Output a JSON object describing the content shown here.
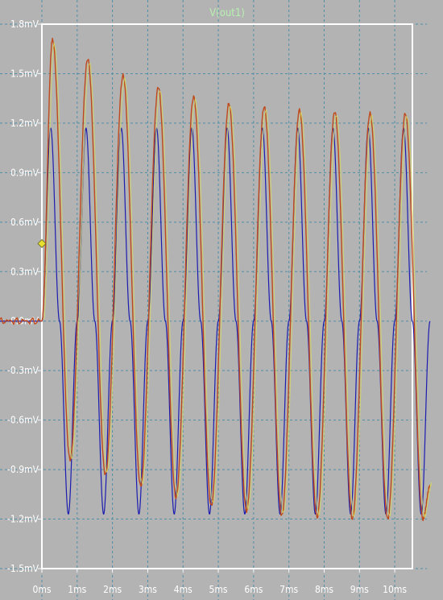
{
  "chart_data": {
    "type": "line",
    "title": "V(out1)",
    "xlabel": "",
    "ylabel": "",
    "x_unit": "ms",
    "y_unit": "mV",
    "xlim": [
      0,
      10.5
    ],
    "ylim": [
      -1.5,
      1.8
    ],
    "x_ticks": [
      "0ms",
      "1ms",
      "2ms",
      "3ms",
      "4ms",
      "5ms",
      "6ms",
      "7ms",
      "8ms",
      "9ms",
      "10ms"
    ],
    "x_tick_values": [
      0,
      1,
      2,
      3,
      4,
      5,
      6,
      7,
      8,
      9,
      10
    ],
    "y_ticks": [
      "1.8mV",
      "1.5mV",
      "1.2mV",
      "0.9mV",
      "0.6mV",
      "0.3mV",
      "0.0mV",
      "-0.3mV",
      "-0.6mV",
      "-0.9mV",
      "-1.2mV",
      "-1.5mV"
    ],
    "y_tick_values": [
      1.8,
      1.5,
      1.2,
      0.9,
      0.6,
      0.3,
      0.0,
      -0.3,
      -0.6,
      -0.9,
      -1.2,
      -1.5
    ],
    "grid": true,
    "cursor_marker": {
      "x": 0.0,
      "y": 0.47,
      "color": "#e8e030"
    },
    "series": [
      {
        "color": "#1c1cb0",
        "x": [
          -1.1,
          0.0,
          0.25,
          0.5,
          0.75,
          1.0,
          1.25,
          1.5,
          1.75,
          2.0,
          2.25,
          2.5,
          2.75,
          3.0,
          3.25,
          3.5,
          3.75,
          4.0,
          4.25,
          4.5,
          4.75,
          5.0,
          5.25,
          5.5,
          5.75,
          6.0,
          6.25,
          6.5,
          6.75,
          7.0,
          7.25,
          7.5,
          7.75,
          8.0,
          8.25,
          8.5,
          8.75,
          9.0,
          9.25,
          9.5,
          9.75,
          10.0,
          10.25,
          10.5,
          10.75,
          11.0
        ],
        "y": [
          0.0,
          0.0,
          1.17,
          0.0,
          -1.17,
          0.0,
          1.17,
          0.0,
          -1.17,
          0.0,
          1.17,
          0.0,
          -1.17,
          0.0,
          1.17,
          0.0,
          -1.17,
          0.0,
          1.17,
          0.0,
          -1.17,
          0.0,
          1.17,
          0.0,
          -1.17,
          0.0,
          1.17,
          0.0,
          -1.17,
          0.0,
          1.17,
          0.0,
          -1.17,
          0.0,
          1.17,
          0.0,
          -1.17,
          0.0,
          1.17,
          0.0,
          -1.17,
          0.0,
          1.17,
          0.0,
          -1.17,
          0.0
        ]
      },
      {
        "color": "#c04a1c",
        "x": [
          -1.1,
          0.0,
          0.3,
          0.8,
          1.3,
          1.8,
          2.3,
          2.8,
          3.3,
          3.8,
          4.3,
          4.8,
          5.3,
          5.8,
          6.3,
          6.8,
          7.3,
          7.8,
          8.3,
          8.8,
          9.3,
          9.8,
          10.3,
          10.8,
          11.0
        ],
        "y": [
          0.0,
          0.0,
          1.71,
          -0.84,
          1.59,
          -0.93,
          1.49,
          -1.0,
          1.42,
          -1.07,
          1.36,
          -1.12,
          1.32,
          -1.15,
          1.3,
          -1.18,
          1.28,
          -1.19,
          1.27,
          -1.2,
          1.26,
          -1.2,
          1.26,
          -1.2,
          -1.0
        ]
      }
    ]
  }
}
